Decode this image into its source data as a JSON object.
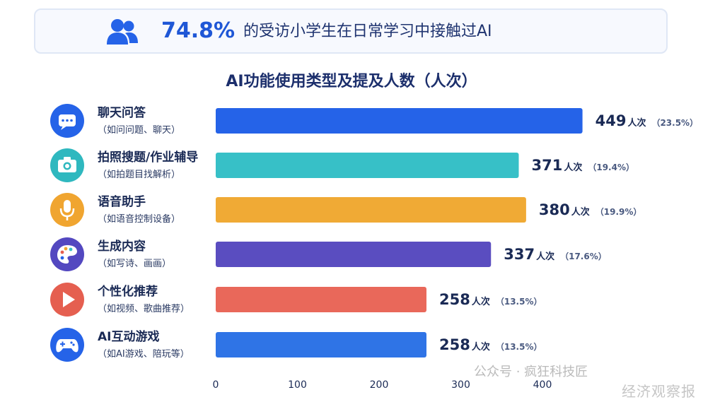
{
  "banner": {
    "percentage": "74.8%",
    "text": "的受访小学生在日常学习中接触过AI"
  },
  "watermark": {
    "account": "公众号 · 疯狂科技匠",
    "source": "经济观察报"
  },
  "chart_data": {
    "type": "bar",
    "orientation": "horizontal",
    "title": "AI功能使用类型及提及人数（人次）",
    "xlim": [
      0,
      400
    ],
    "xticks": [
      0,
      100,
      200,
      300,
      400
    ],
    "tick_labels": [
      "0",
      "100",
      "200",
      "300",
      "400"
    ],
    "categories": [
      {
        "name": "聊天问答",
        "sub": "（如问问题、聊天）",
        "value": 449,
        "unit": "人次",
        "pct": "（23.5%）",
        "color": "#2563e8",
        "icon": "chat-icon",
        "icon_bg": "#2563e8"
      },
      {
        "name": "拍照搜题/作业辅导",
        "sub": "（如拍题目找解析）",
        "value": 371,
        "unit": "人次",
        "pct": "（19.4%）",
        "color": "#37c0c7",
        "icon": "camera-icon",
        "icon_bg": "#2fb8bf"
      },
      {
        "name": "语音助手",
        "sub": "（如语音控制设备）",
        "value": 380,
        "unit": "人次",
        "pct": "（19.9%）",
        "color": "#f0aa35",
        "icon": "microphone-icon",
        "icon_bg": "#f0a530"
      },
      {
        "name": "生成内容",
        "sub": "（如写诗、画画）",
        "value": 337,
        "unit": "人次",
        "pct": "（17.6%）",
        "color": "#5a4dc0",
        "icon": "palette-icon",
        "icon_bg": "#5348c0"
      },
      {
        "name": "个性化推荐",
        "sub": "（如视频、歌曲推荐）",
        "value": 258,
        "unit": "人次",
        "pct": "（13.5%）",
        "color": "#e9685a",
        "icon": "play-icon",
        "icon_bg": "#e55f50"
      },
      {
        "name": "AI互动游戏",
        "sub": "（如AI游戏、陪玩等）",
        "value": 258,
        "unit": "人次",
        "pct": "（13.5%）",
        "color": "#2f74e6",
        "icon": "gamepad-icon",
        "icon_bg": "#2563e8"
      }
    ]
  }
}
